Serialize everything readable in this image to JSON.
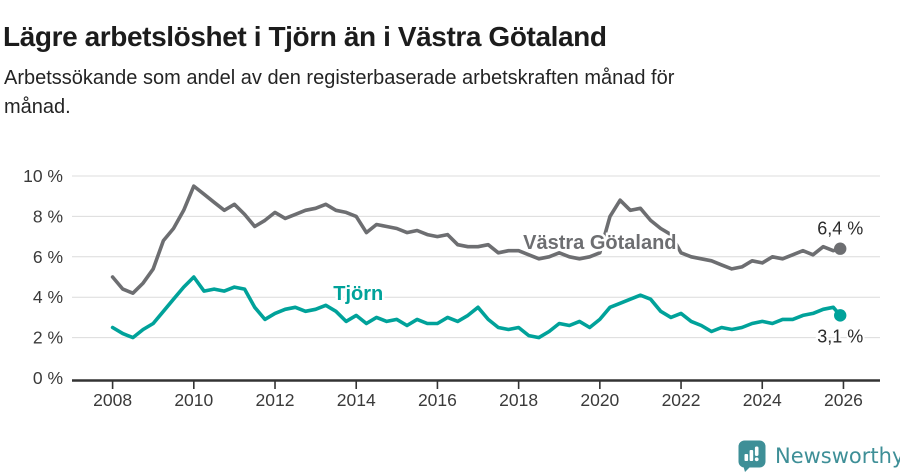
{
  "header": {
    "title": "Lägre arbetslöshet i Tjörn än i Västra Götaland",
    "subtitle_lines": [
      "Arbetssökande som andel av den registerbaserade arbetskraften månad för",
      "månad."
    ]
  },
  "chart_data": {
    "type": "line",
    "title": "Lägre arbetslöshet i Tjörn än i Västra Götaland",
    "subtitle": "Arbetssökande som andel av den registerbaserade arbetskraften månad för månad.",
    "unit": "%",
    "xlim": [
      2007.0,
      2026.9
    ],
    "ylim": [
      0,
      10
    ],
    "grid": true,
    "legend_position": "inline-labels",
    "xticks": [
      2008,
      2010,
      2012,
      2014,
      2016,
      2018,
      2020,
      2022,
      2024,
      2026
    ],
    "xtick_labels": [
      "2008",
      "2010",
      "2012",
      "2014",
      "2016",
      "2018",
      "2020",
      "2022",
      "2024",
      "2026"
    ],
    "yticks": [
      0,
      2,
      4,
      6,
      8,
      10
    ],
    "ytick_labels": [
      "0 %",
      "2 %",
      "4 %",
      "6 %",
      "8 %",
      "10 %"
    ],
    "x": [
      2008.0,
      2008.25,
      2008.5,
      2008.75,
      2009.0,
      2009.25,
      2009.5,
      2009.75,
      2010.0,
      2010.25,
      2010.5,
      2010.75,
      2011.0,
      2011.25,
      2011.5,
      2011.75,
      2012.0,
      2012.25,
      2012.5,
      2012.75,
      2013.0,
      2013.25,
      2013.5,
      2013.75,
      2014.0,
      2014.25,
      2014.5,
      2014.75,
      2015.0,
      2015.25,
      2015.5,
      2015.75,
      2016.0,
      2016.25,
      2016.5,
      2016.75,
      2017.0,
      2017.25,
      2017.5,
      2017.75,
      2018.0,
      2018.25,
      2018.5,
      2018.75,
      2019.0,
      2019.25,
      2019.5,
      2019.75,
      2020.0,
      2020.25,
      2020.5,
      2020.75,
      2021.0,
      2021.25,
      2021.5,
      2021.75,
      2022.0,
      2022.25,
      2022.5,
      2022.75,
      2023.0,
      2023.25,
      2023.5,
      2023.75,
      2024.0,
      2024.25,
      2024.5,
      2024.75,
      2025.0,
      2025.25,
      2025.5,
      2025.75,
      2025.92
    ],
    "series": [
      {
        "name": "Västra Götaland",
        "color": "#6d6e71",
        "end_label": "6,4 %",
        "end_value": 6.4,
        "label_pos": {
          "x": 2020.0,
          "y": 6.68
        },
        "values": [
          5.0,
          4.4,
          4.2,
          4.7,
          5.4,
          6.8,
          7.4,
          8.3,
          9.5,
          9.1,
          8.7,
          8.3,
          8.6,
          8.1,
          7.5,
          7.8,
          8.2,
          7.9,
          8.1,
          8.3,
          8.4,
          8.6,
          8.3,
          8.2,
          8.0,
          7.2,
          7.6,
          7.5,
          7.4,
          7.2,
          7.3,
          7.1,
          7.0,
          7.1,
          6.6,
          6.5,
          6.5,
          6.6,
          6.2,
          6.3,
          6.3,
          6.1,
          5.9,
          6.0,
          6.2,
          6.0,
          5.9,
          6.0,
          6.2,
          8.0,
          8.8,
          8.3,
          8.4,
          7.8,
          7.4,
          7.1,
          6.2,
          6.0,
          5.9,
          5.8,
          5.6,
          5.4,
          5.5,
          5.8,
          5.7,
          6.0,
          5.9,
          6.1,
          6.3,
          6.1,
          6.5,
          6.3,
          6.4
        ]
      },
      {
        "name": "Tjörn",
        "color": "#00a29a",
        "end_label": "3,1 %",
        "end_value": 3.1,
        "label_pos": {
          "x": 2014.05,
          "y": 4.16
        },
        "values": [
          2.5,
          2.2,
          2.0,
          2.4,
          2.7,
          3.3,
          3.9,
          4.5,
          5.0,
          4.3,
          4.4,
          4.3,
          4.5,
          4.4,
          3.5,
          2.9,
          3.2,
          3.4,
          3.5,
          3.3,
          3.4,
          3.6,
          3.3,
          2.8,
          3.1,
          2.7,
          3.0,
          2.8,
          2.9,
          2.6,
          2.9,
          2.7,
          2.7,
          3.0,
          2.8,
          3.1,
          3.5,
          2.9,
          2.5,
          2.4,
          2.5,
          2.1,
          2.0,
          2.3,
          2.7,
          2.6,
          2.8,
          2.5,
          2.9,
          3.5,
          3.7,
          3.9,
          4.1,
          3.9,
          3.3,
          3.0,
          3.2,
          2.8,
          2.6,
          2.3,
          2.5,
          2.4,
          2.5,
          2.7,
          2.8,
          2.7,
          2.9,
          2.9,
          3.1,
          3.2,
          3.4,
          3.5,
          3.1
        ]
      }
    ],
    "colors": {
      "grid": "#dcdcdc",
      "axis": "#333333",
      "tick_label": "#3a3a3a",
      "end_label": "#2b2b2b"
    }
  },
  "footer": {
    "brand": "Newsworthy",
    "brand_color": "#3e8f97"
  }
}
